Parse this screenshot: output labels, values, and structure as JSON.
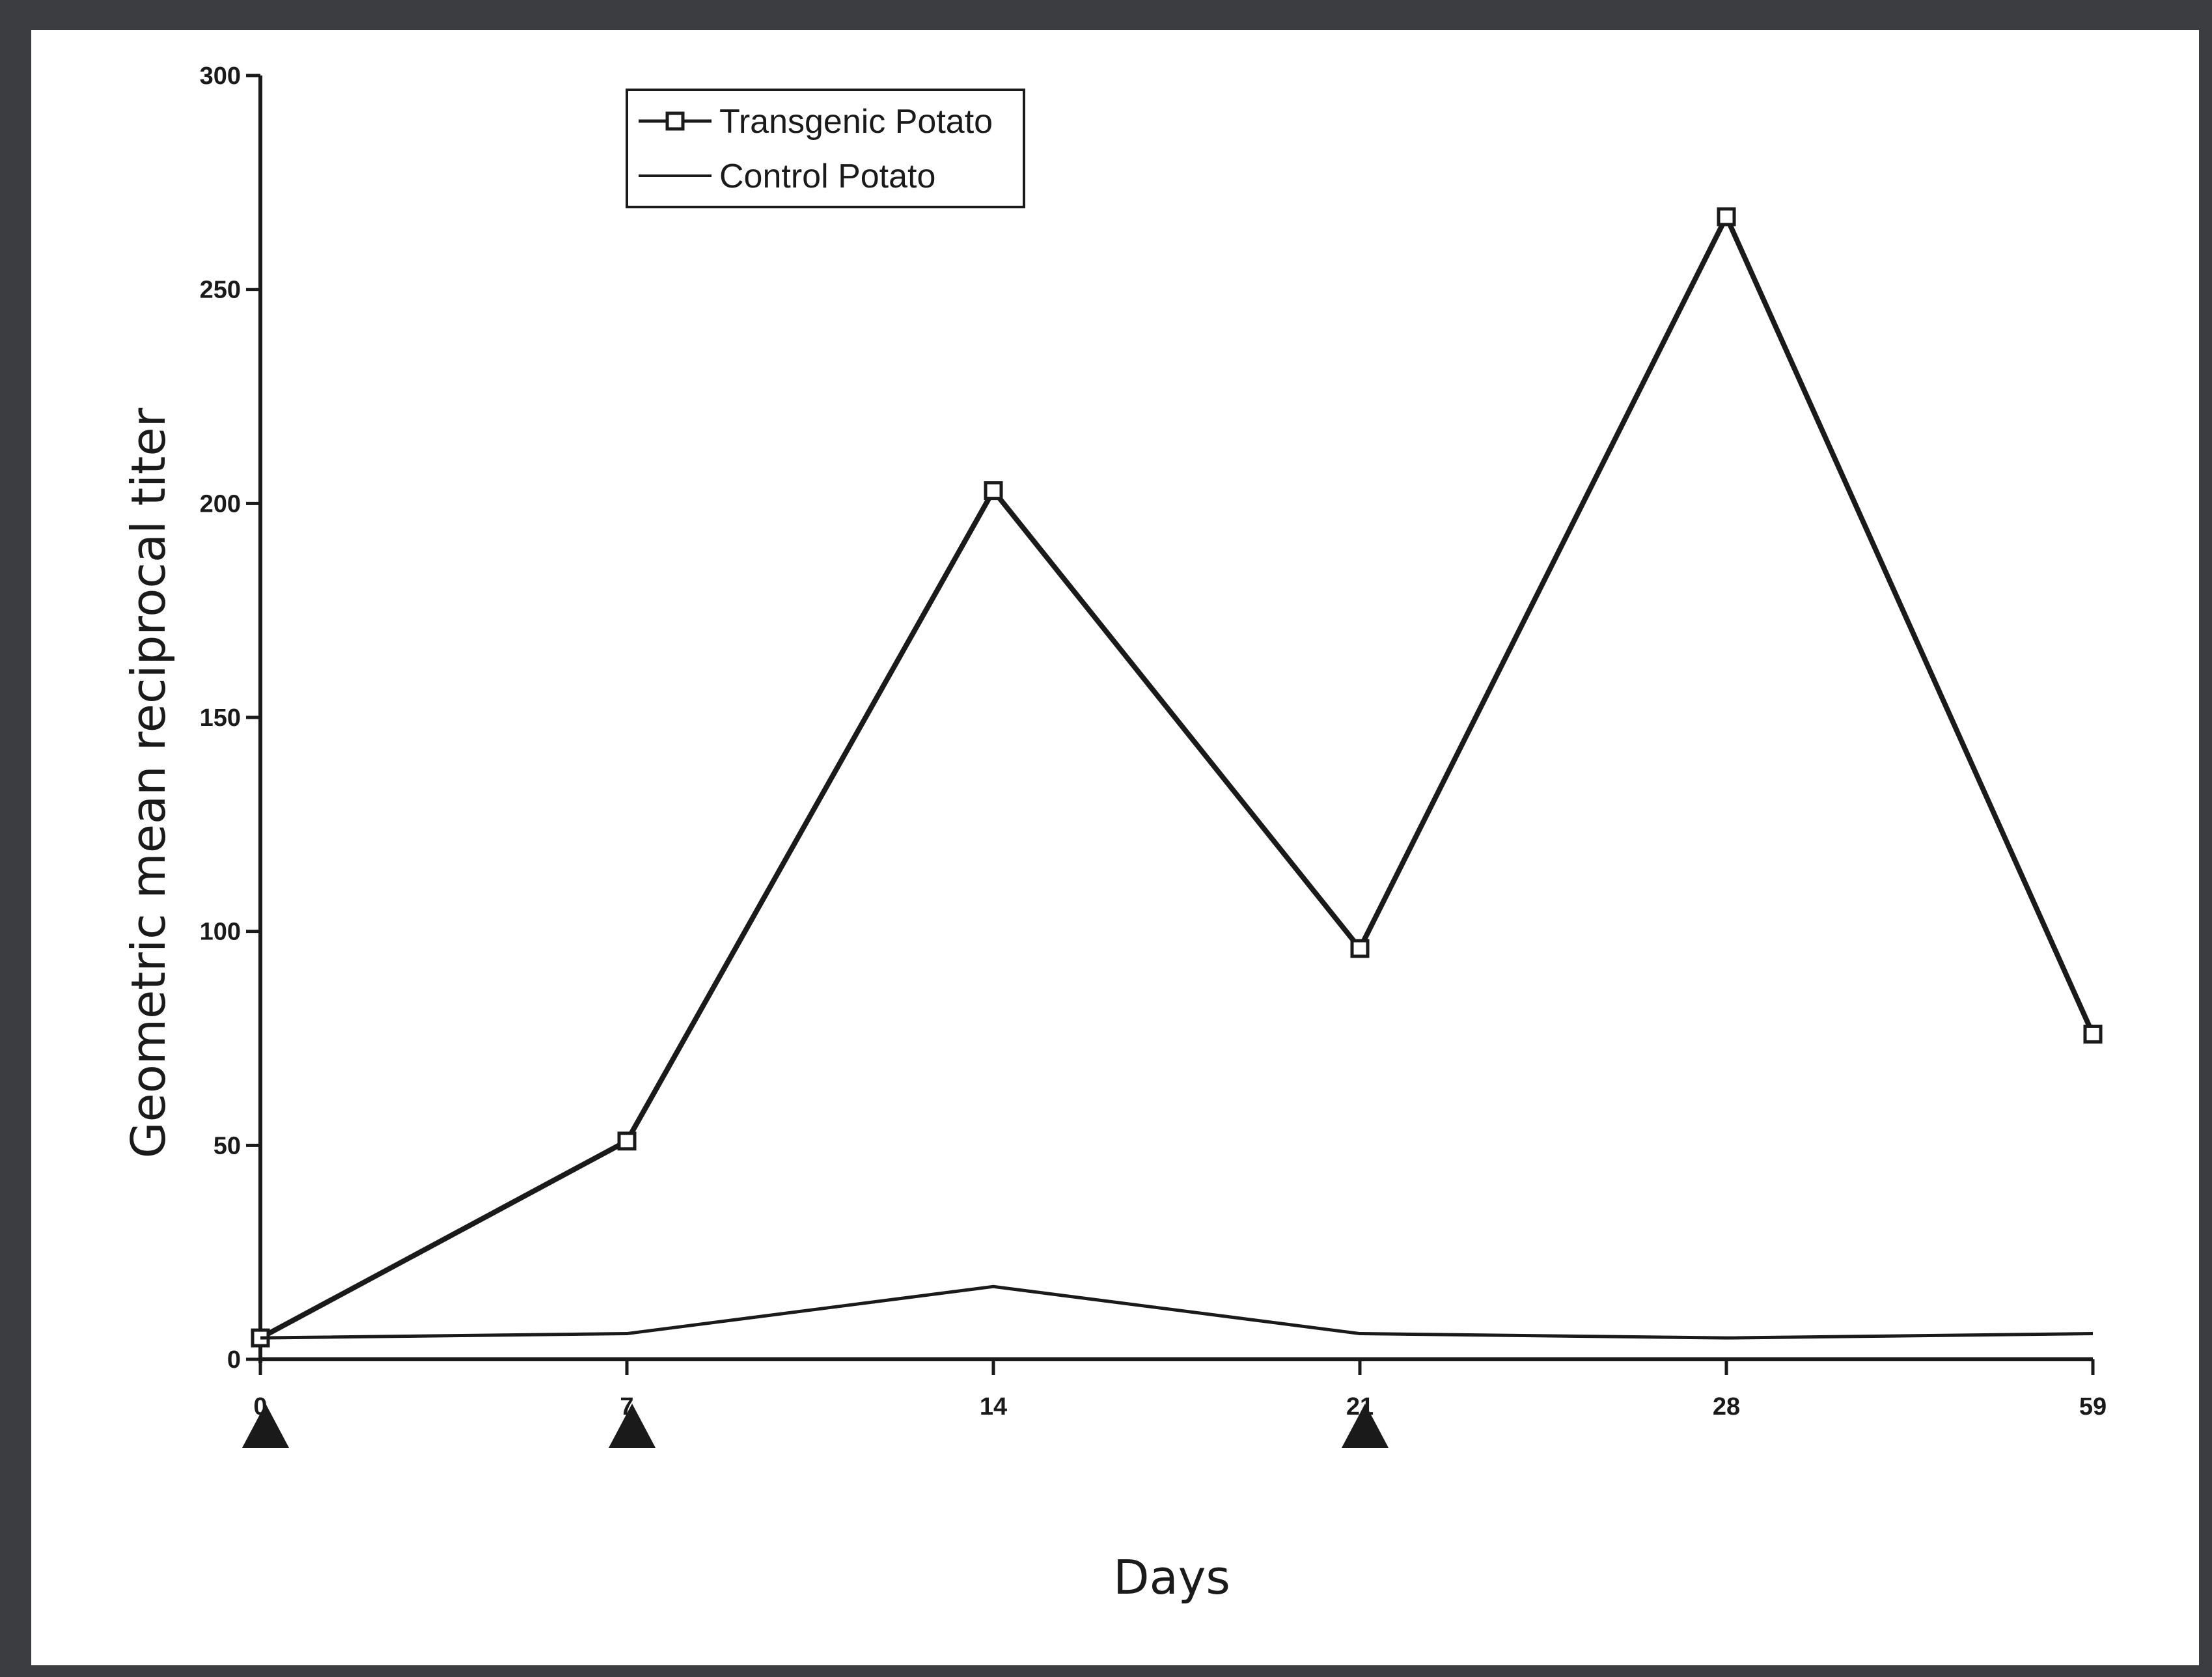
{
  "chart_data": {
    "type": "line",
    "x": [
      0,
      7,
      14,
      21,
      28,
      59
    ],
    "x_tick_labels": [
      "0",
      "7",
      "14",
      "21",
      "28",
      "59"
    ],
    "xlabel": "Days",
    "ylabel": "Geometric mean reciprocal titer",
    "ylim": [
      0,
      300
    ],
    "y_ticks": [
      0,
      50,
      100,
      150,
      200,
      250,
      300
    ],
    "y_tick_labels": [
      "0",
      "50",
      "100",
      "150",
      "200",
      "250",
      "300"
    ],
    "series": [
      {
        "name": "Transgenic Potato",
        "values": [
          5,
          51,
          203,
          96,
          267,
          76
        ],
        "marker": "square"
      },
      {
        "name": "Control Potato",
        "values": [
          5,
          6,
          17,
          6,
          5,
          6
        ],
        "marker": "none"
      }
    ],
    "dose_markers_at_x": [
      0,
      7,
      21
    ],
    "legend_position": "top-left",
    "grid": false,
    "colors": {
      "line": "#1a1a1a",
      "background": "#ffffff",
      "frame": "#3b3d40"
    }
  }
}
